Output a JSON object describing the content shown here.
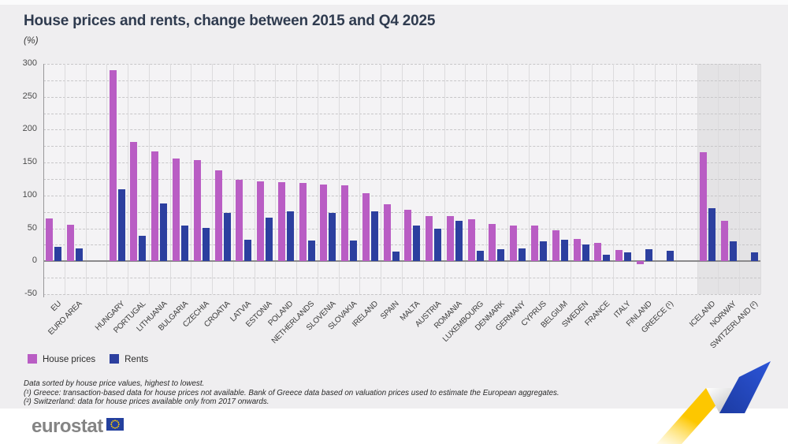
{
  "header": {
    "title": "House prices and rents, change between 2015 and Q4 2025",
    "subtitle": "(%)"
  },
  "chart_data": {
    "type": "bar",
    "title": "House prices and rents, change between 2015 and Q4 2025",
    "unit": "%",
    "ylim": [
      -50,
      300
    ],
    "yticks": [
      300,
      250,
      200,
      150,
      100,
      50,
      0,
      -50
    ],
    "grid_minor_step": 25,
    "grid": true,
    "legend_position": "bottom-left",
    "categories": [
      "EU",
      "EURO AREA",
      "HUNGARY",
      "PORTUGAL",
      "LITHUANIA",
      "BULGARIA",
      "CZECHIA",
      "CROATIA",
      "LATVIA",
      "ESTONIA",
      "POLAND",
      "NETHERLANDS",
      "SLOVENIA",
      "SLOVAKIA",
      "IRELAND",
      "SPAIN",
      "MALTA",
      "AUSTRIA",
      "ROMANIA",
      "LUXEMBOURG",
      "DENMARK",
      "GERMANY",
      "CYPRUS",
      "BELGIUM",
      "SWEDEN",
      "FRANCE",
      "ITALY",
      "FINLAND",
      "GREECE (¹)",
      "ICELAND",
      "NORWAY",
      "SWITZERLAND (²)"
    ],
    "series": [
      {
        "name": "House prices",
        "color": "#b95dc4",
        "values": [
          65,
          56,
          290,
          181,
          167,
          156,
          154,
          138,
          124,
          121,
          120,
          119,
          117,
          115,
          103,
          87,
          78,
          69,
          69,
          64,
          57,
          54,
          54,
          47,
          34,
          28,
          17,
          -4,
          null,
          166,
          61,
          null
        ]
      },
      {
        "name": "Rents",
        "color": "#2c3f9f",
        "values": [
          22,
          20,
          109,
          39,
          88,
          54,
          51,
          73,
          33,
          66,
          76,
          32,
          73,
          31,
          76,
          15,
          54,
          50,
          62,
          16,
          18,
          19,
          30,
          33,
          26,
          10,
          14,
          18,
          16,
          81,
          30,
          14
        ]
      }
    ],
    "gaps_after": [
      "EURO AREA",
      "GREECE (¹)"
    ],
    "shaded_region": {
      "from": "ICELAND",
      "to": "SWITZERLAND (²)",
      "color": "#e4e3e5"
    }
  },
  "footnotes": [
    "Data sorted by house price values, highest to lowest.",
    "(¹) Greece: transaction-based data for house prices not available. Bank of Greece data based on valuation prices used to estimate the European aggregates.",
    "(²) Switzerland: data for house prices available only from 2017 onwards."
  ],
  "footer": {
    "brand": "eurostat"
  }
}
